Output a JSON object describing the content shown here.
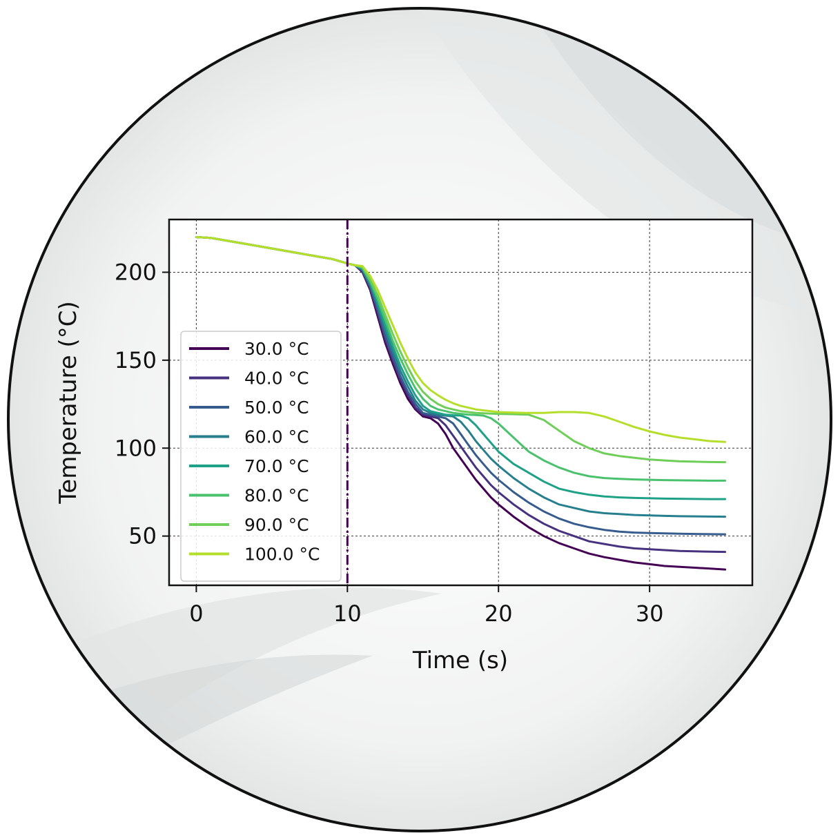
{
  "chart_data": {
    "type": "line",
    "title": "",
    "xlabel": "Time (s)",
    "ylabel": "Temperature (°C)",
    "xlim": [
      -1.8,
      36.8
    ],
    "ylim": [
      22,
      230
    ],
    "xticks": [
      0,
      10,
      20,
      30
    ],
    "yticks": [
      50,
      100,
      150,
      200
    ],
    "grid": true,
    "legend_position": "lower-left",
    "vline": {
      "x": 10,
      "style": "dash-dot",
      "color": "#440154"
    },
    "x": [
      0,
      1,
      2,
      3,
      4,
      5,
      6,
      7,
      8,
      9,
      10,
      10.5,
      11,
      11.5,
      12,
      12.5,
      13,
      13.5,
      14,
      14.5,
      15,
      15.5,
      16,
      16.5,
      17,
      17.5,
      18,
      18.5,
      19,
      19.5,
      20,
      21,
      22,
      23,
      24,
      25,
      26,
      27,
      28,
      29,
      30,
      31,
      32,
      33,
      34,
      35
    ],
    "series": [
      {
        "name": "30.0 °C",
        "color": "#440154",
        "values": [
          220,
          219.5,
          218,
          216.5,
          215,
          213.5,
          212,
          210.5,
          209,
          207.5,
          205,
          204,
          200,
          190,
          175,
          160,
          148,
          137,
          128,
          122,
          118,
          117,
          114,
          108,
          100,
          94,
          88,
          82,
          77,
          72,
          68,
          61,
          55,
          50,
          46,
          43,
          40,
          38,
          36.5,
          35,
          34,
          33,
          32.5,
          32,
          31.5,
          31
        ]
      },
      {
        "name": "40.0 °C",
        "color": "#46327e",
        "values": [
          220,
          219.5,
          218,
          216.5,
          215,
          213.5,
          212,
          210.5,
          209,
          207.5,
          205,
          204,
          200.5,
          191,
          177,
          162,
          150,
          139,
          130,
          123,
          119,
          118,
          117,
          113,
          107,
          101,
          95,
          89,
          84,
          79,
          75,
          68,
          62,
          57,
          53,
          50,
          47,
          45.5,
          44,
          43,
          42.5,
          42,
          41.5,
          41.3,
          41.1,
          41
        ]
      },
      {
        "name": "50.0 °C",
        "color": "#365c8d",
        "values": [
          220,
          219.5,
          218,
          216.5,
          215,
          213.5,
          212,
          210.5,
          209,
          207.5,
          205,
          204,
          201,
          192,
          179,
          164,
          152,
          141,
          132,
          125,
          120,
          119,
          118,
          117,
          114,
          108,
          102,
          96,
          91,
          86,
          82,
          75,
          69,
          64,
          60,
          57,
          55,
          53.5,
          52.5,
          52,
          51.7,
          51.5,
          51.3,
          51.2,
          51.1,
          51
        ]
      },
      {
        "name": "60.0 °C",
        "color": "#277f8e",
        "values": [
          220,
          219.5,
          218,
          216.5,
          215,
          213.5,
          212,
          210.5,
          209,
          207.5,
          205,
          204,
          201.5,
          193,
          181,
          167,
          155,
          144,
          135,
          127,
          122,
          120,
          119,
          118.5,
          118,
          115,
          110,
          104,
          99,
          94,
          90,
          83,
          77,
          72,
          68,
          66,
          64,
          63,
          62.5,
          62,
          61.7,
          61.5,
          61.3,
          61.2,
          61.1,
          61
        ]
      },
      {
        "name": "70.0 °C",
        "color": "#1fa187",
        "values": [
          220,
          219.5,
          218,
          216.5,
          215,
          213.5,
          212,
          210.5,
          209,
          207.5,
          205,
          204,
          202,
          194,
          183,
          170,
          158,
          147,
          138,
          130,
          124,
          121,
          120,
          119,
          118.7,
          118.5,
          117,
          113,
          108,
          103,
          98,
          91,
          86,
          81,
          77,
          75,
          73.5,
          72.5,
          72,
          71.7,
          71.5,
          71.3,
          71.2,
          71.1,
          71,
          71
        ]
      },
      {
        "name": "80.0 °C",
        "color": "#4ac16d",
        "values": [
          220,
          219.5,
          218,
          216.5,
          215,
          213.5,
          212,
          210.5,
          209,
          207.5,
          205,
          204,
          202.5,
          195,
          185,
          173,
          161,
          151,
          142,
          134,
          128,
          124,
          122,
          121,
          120,
          119.5,
          119,
          118.8,
          118.5,
          117,
          114,
          106,
          98,
          93,
          89,
          86,
          84,
          83,
          82.5,
          82.2,
          82,
          81.8,
          81.7,
          81.6,
          81.5,
          81.5
        ]
      },
      {
        "name": "90.0 °C",
        "color": "#6ece58",
        "values": [
          220,
          219.5,
          218,
          216.5,
          215,
          213.5,
          212,
          210.5,
          209,
          207.5,
          205,
          204,
          203,
          196,
          187,
          176,
          165,
          155,
          146,
          138,
          132,
          128,
          125,
          123,
          122,
          121,
          120.5,
          120,
          119.8,
          119.6,
          119.5,
          119.3,
          119,
          116,
          110,
          104,
          100,
          97,
          95.5,
          94.5,
          93.5,
          93,
          92.5,
          92.3,
          92.1,
          92
        ]
      },
      {
        "name": "100.0 °C",
        "color": "#b5de2b",
        "values": [
          220,
          219.5,
          218,
          216.5,
          215,
          213.5,
          212,
          210.5,
          209,
          207.5,
          205,
          204,
          203.5,
          198,
          190,
          180,
          170,
          160,
          151,
          143,
          137,
          133,
          130,
          127.5,
          125.5,
          124,
          123,
          122,
          121.5,
          121,
          120.5,
          120.2,
          120,
          120,
          120.5,
          120.5,
          120,
          118,
          115,
          112,
          109.5,
          107.5,
          106,
          105,
          104,
          103.5
        ]
      }
    ]
  }
}
